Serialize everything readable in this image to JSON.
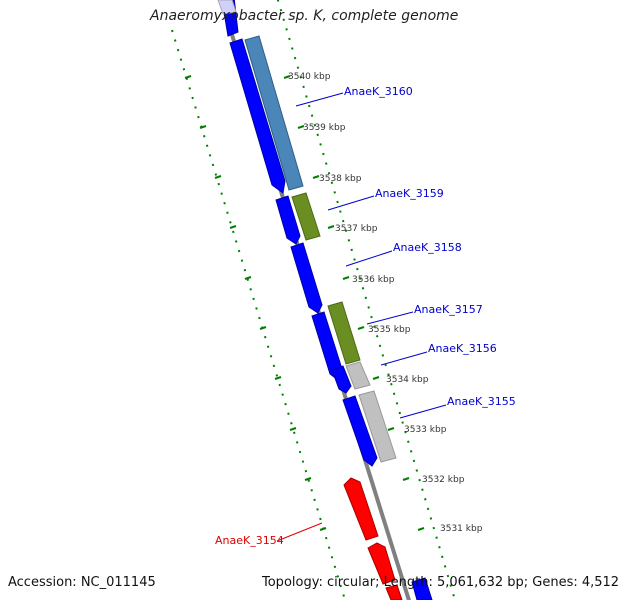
{
  "title": "Anaeromyxobacter sp. K, complete genome",
  "footer": {
    "accession": "Accession: NC_011145",
    "topology": "Topology: circular; Length: 5,061,632 bp; Genes: 4,512"
  },
  "colors": {
    "forward_cds": "#0000ff",
    "reverse_cds": "#ff0000",
    "cog_steelblue": "#4a86b8",
    "cog_olive": "#6b8e23",
    "cog_gray": "#c0c0c0",
    "backbone": "#808080",
    "tick_marks": "#008000",
    "label_forward": "#0000cc",
    "label_reverse": "#dd0000"
  },
  "ticks": [
    "3540 kbp",
    "3539 kbp",
    "3538 kbp",
    "3537 kbp",
    "3536 kbp",
    "3535 kbp",
    "3534 kbp",
    "3533 kbp",
    "3532 kbp",
    "3531 kbp"
  ],
  "genes": [
    {
      "id": "AnaeK_3160",
      "strand": "forward"
    },
    {
      "id": "AnaeK_3159",
      "strand": "forward"
    },
    {
      "id": "AnaeK_3158",
      "strand": "forward"
    },
    {
      "id": "AnaeK_3157",
      "strand": "forward"
    },
    {
      "id": "AnaeK_3156",
      "strand": "forward"
    },
    {
      "id": "AnaeK_3155",
      "strand": "forward"
    },
    {
      "id": "AnaeK_3154",
      "strand": "reverse"
    }
  ]
}
